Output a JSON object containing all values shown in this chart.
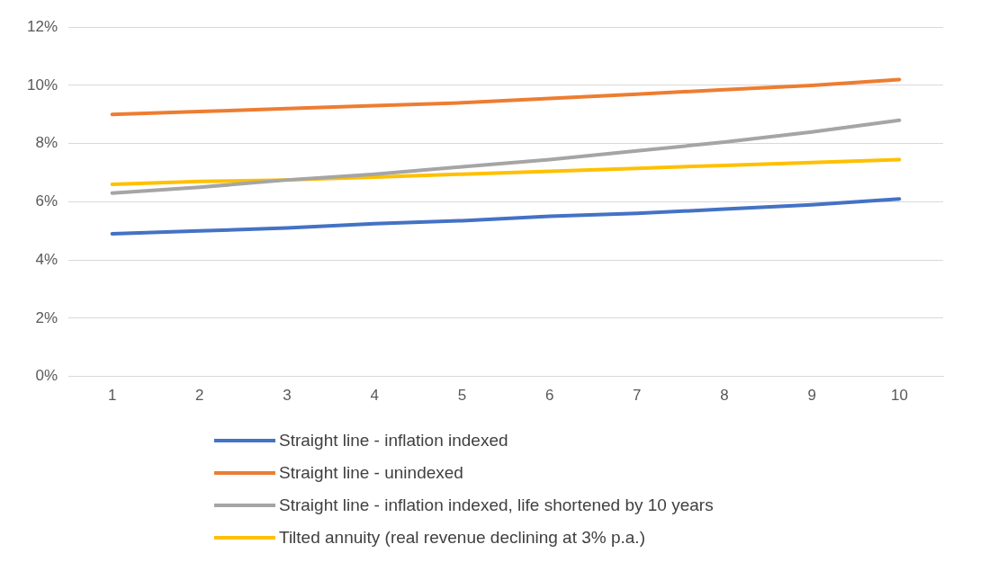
{
  "chart_data": {
    "type": "line",
    "categories": [
      "1",
      "2",
      "3",
      "4",
      "5",
      "6",
      "7",
      "8",
      "9",
      "10"
    ],
    "series": [
      {
        "name": "Straight line - inflation indexed",
        "color": "#4472c4",
        "values": [
          4.9,
          5.0,
          5.1,
          5.25,
          5.35,
          5.5,
          5.6,
          5.75,
          5.9,
          6.1
        ]
      },
      {
        "name": "Straight line - unindexed",
        "color": "#ed7d31",
        "values": [
          9.0,
          9.1,
          9.2,
          9.3,
          9.4,
          9.55,
          9.7,
          9.85,
          10.0,
          10.2
        ]
      },
      {
        "name": "Straight line - inflation indexed, life shortened by 10 years",
        "color": "#a5a5a5",
        "values": [
          6.3,
          6.5,
          6.75,
          6.95,
          7.2,
          7.45,
          7.75,
          8.05,
          8.4,
          8.8
        ]
      },
      {
        "name": "Tilted annuity (real revenue declining at 3% p.a.)",
        "color": "#ffc000",
        "values": [
          6.6,
          6.7,
          6.75,
          6.85,
          6.95,
          7.05,
          7.15,
          7.25,
          7.35,
          7.45
        ]
      }
    ],
    "ylim": [
      0,
      12
    ],
    "yticks": [
      {
        "value": 0,
        "label": "0%"
      },
      {
        "value": 2,
        "label": "2%"
      },
      {
        "value": 4,
        "label": "4%"
      },
      {
        "value": 6,
        "label": "6%"
      },
      {
        "value": 8,
        "label": "8%"
      },
      {
        "value": 10,
        "label": "10%"
      },
      {
        "value": 12,
        "label": "12%"
      }
    ],
    "grid": "y",
    "legend": "bottom",
    "marker": "none",
    "line_style": "solid"
  }
}
